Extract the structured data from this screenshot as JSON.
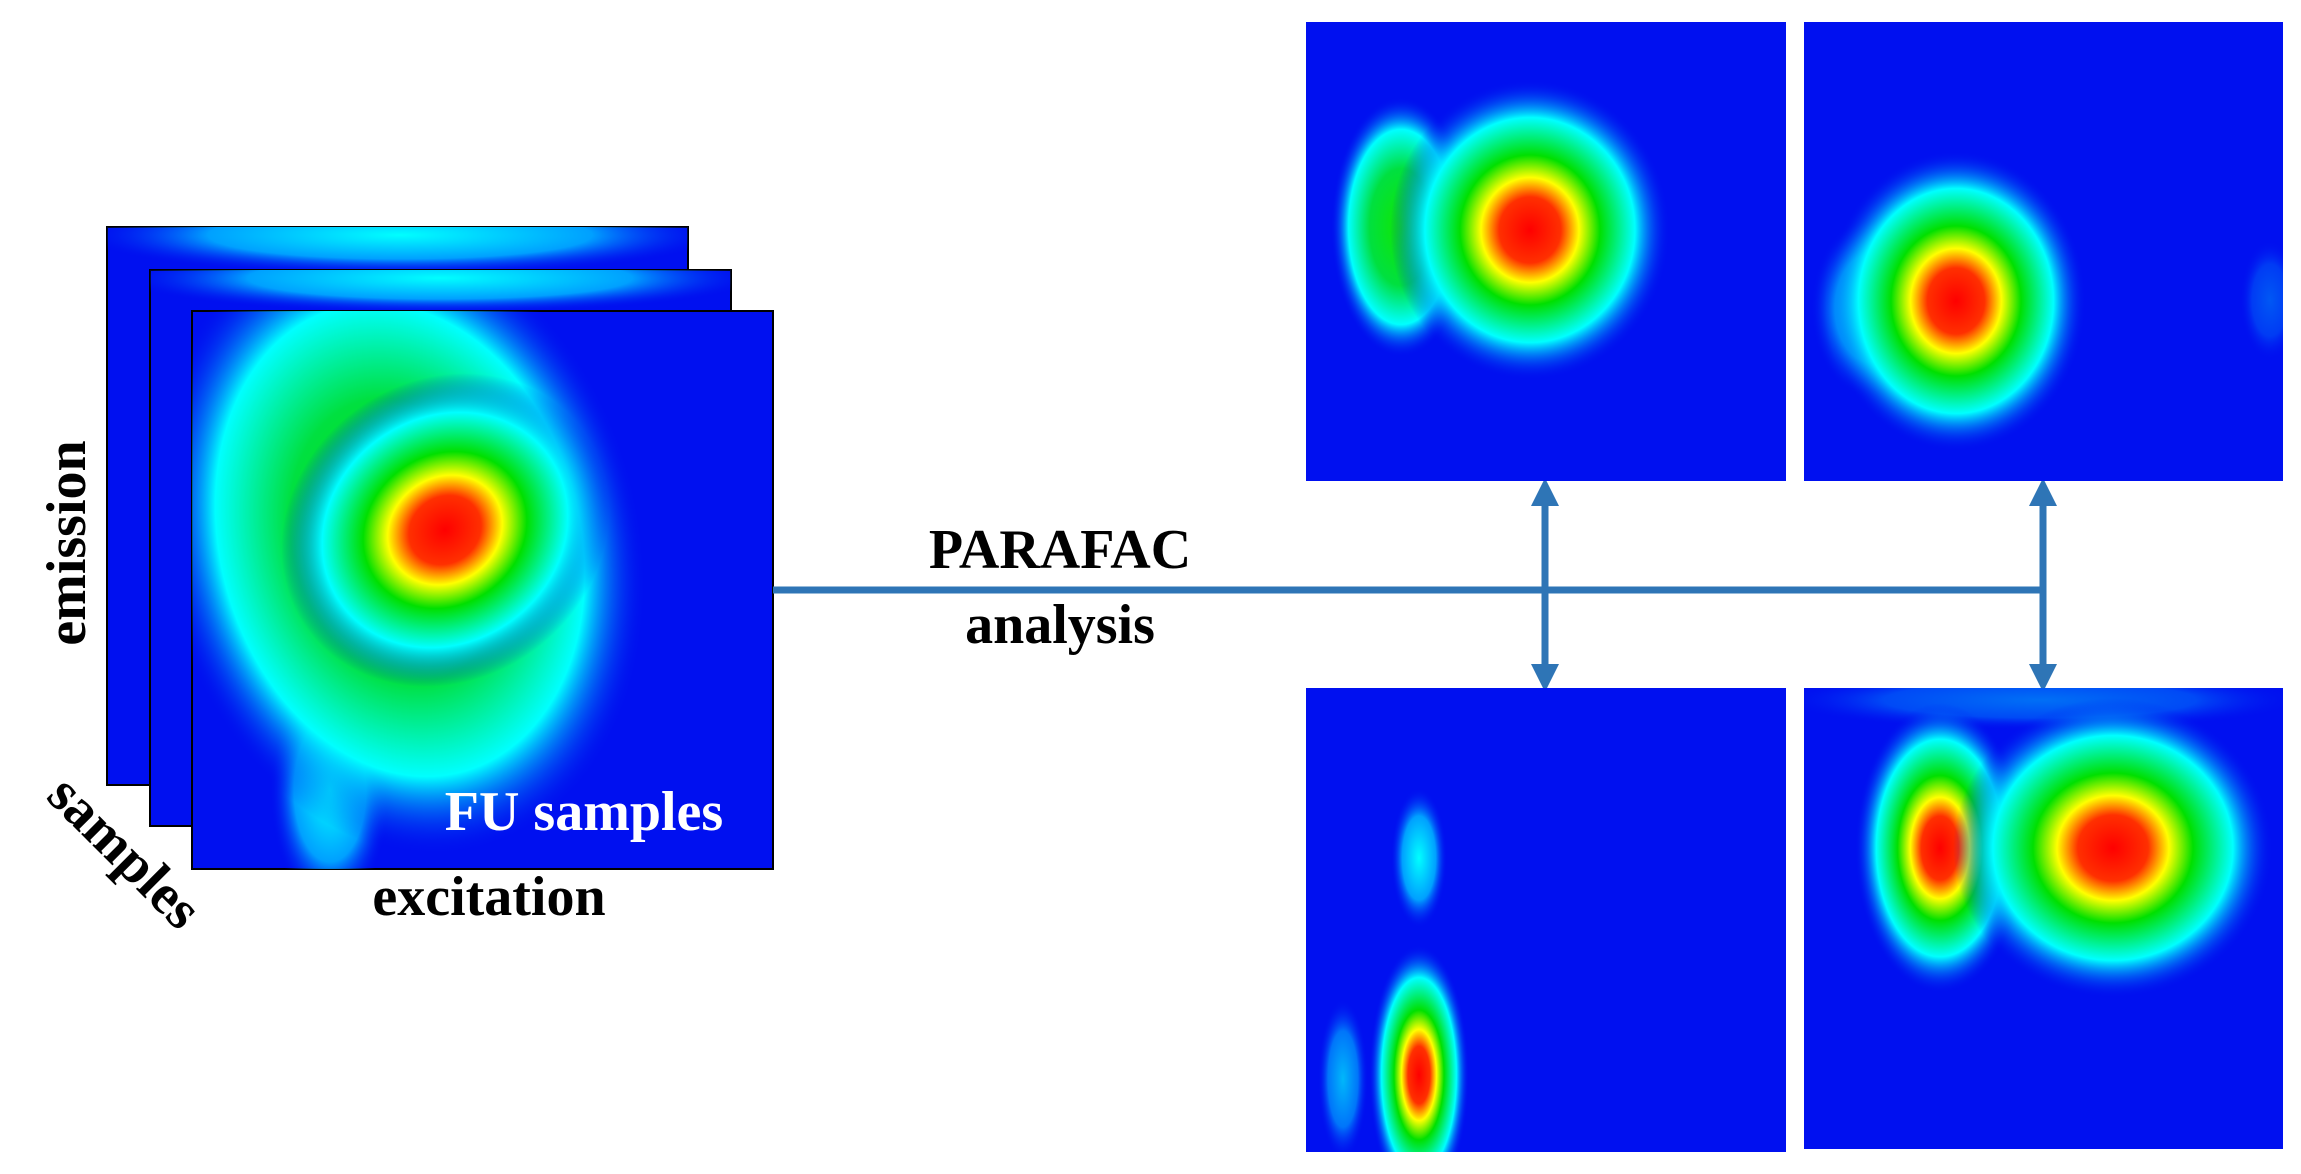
{
  "input": {
    "axis_y": "emission",
    "axis_depth": "samples",
    "axis_x": "excitation",
    "label": "FU samples"
  },
  "method": {
    "line1": "PARAFAC",
    "line2": "analysis"
  }
}
